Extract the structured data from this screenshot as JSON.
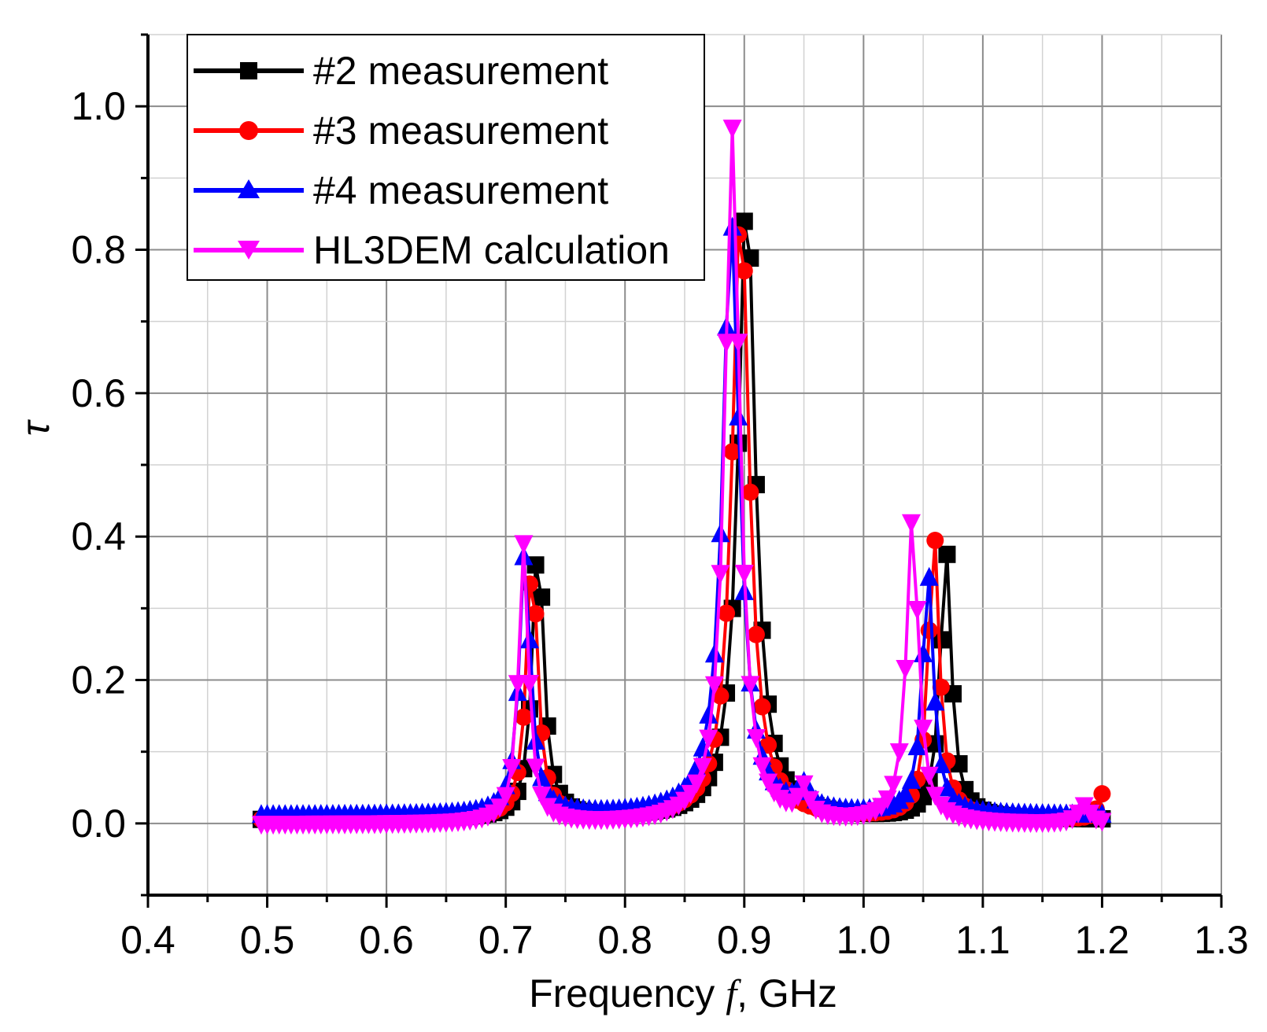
{
  "chart_data": {
    "type": "line",
    "title": "",
    "xlabel_pre": "Frequency ",
    "xlabel_var": "f",
    "xlabel_post": ", GHz",
    "ylabel": "τ",
    "xlim": [
      0.4,
      1.3
    ],
    "ylim": [
      -0.1,
      1.1
    ],
    "xticks": [
      "0.4",
      "0.5",
      "0.6",
      "0.7",
      "0.8",
      "0.9",
      "1.0",
      "1.1",
      "1.2",
      "1.3"
    ],
    "yticks": [
      "0.0",
      "0.2",
      "0.4",
      "0.6",
      "0.8",
      "1.0"
    ],
    "grid": true,
    "legend_position": "top-left",
    "series": [
      {
        "name": "#2 measurement",
        "color": "#000000",
        "marker": "square",
        "peaks": [
          {
            "f0": 0.727,
            "a": 0.4,
            "w": 0.0055
          },
          {
            "f0": 0.902,
            "a": 0.88,
            "w": 0.0085
          },
          {
            "f0": 1.069,
            "a": 0.38,
            "w": 0.0055
          }
        ],
        "baseline": 0.005
      },
      {
        "name": "#3 measurement",
        "color": "#ff0000",
        "marker": "circle",
        "peaks": [
          {
            "f0": 0.722,
            "a": 0.37,
            "w": 0.0055
          },
          {
            "f0": 0.897,
            "a": 0.86,
            "w": 0.0085
          },
          {
            "f0": 1.059,
            "a": 0.4,
            "w": 0.0055
          },
          {
            "f0": 1.2,
            "a": 0.035,
            "w": 0.004
          }
        ],
        "baseline": 0.005
      },
      {
        "name": "#4 measurement",
        "color": "#0000ff",
        "marker": "triangle-up",
        "peaks": [
          {
            "f0": 0.716,
            "a": 0.37,
            "w": 0.0055
          },
          {
            "f0": 0.889,
            "a": 0.83,
            "w": 0.0085
          },
          {
            "f0": 1.054,
            "a": 0.34,
            "w": 0.0055
          },
          {
            "f0": 0.95,
            "a": 0.03,
            "w": 0.006
          }
        ],
        "baseline": 0.012
      },
      {
        "name": "HL3DEM calculation",
        "color": "#ff00ff",
        "marker": "triangle-down",
        "peaks": [
          {
            "f0": 0.715,
            "a": 0.39,
            "w": 0.005
          },
          {
            "f0": 0.89,
            "a": 0.97,
            "w": 0.0075
          },
          {
            "f0": 1.041,
            "a": 0.43,
            "w": 0.006
          },
          {
            "f0": 1.185,
            "a": 0.025,
            "w": 0.006
          },
          {
            "f0": 0.95,
            "a": 0.04,
            "w": 0.005
          }
        ],
        "baseline": -0.002
      }
    ],
    "x_start": 0.495,
    "x_end": 1.2,
    "x_step": 0.005
  }
}
